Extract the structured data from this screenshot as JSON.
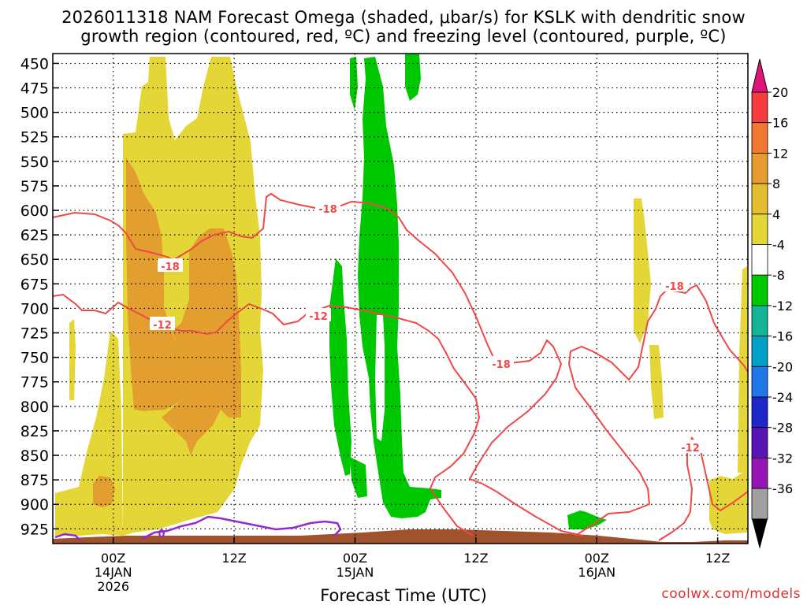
{
  "title": {
    "line1": "2026011318 NAM Forecast Omega (shaded, μbar/s) for KSLK with dendritic snow",
    "line2": "growth region (contoured, red, ºC) and freezing level (contoured, purple, ºC)"
  },
  "credit": "coolwx.com/models",
  "chart_data": {
    "type": "time-height cross section",
    "title": "2026011318 NAM Forecast Omega (shaded, μbar/s) for KSLK with dendritic snow growth region (contoured, red, ºC) and freezing level (contoured, purple, ºC)",
    "xlabel": "Forecast Time (UTC)",
    "ylabel": "Pressure (hPa)",
    "y_ticks": [
      450,
      475,
      500,
      525,
      550,
      575,
      600,
      625,
      650,
      675,
      700,
      725,
      750,
      775,
      800,
      825,
      850,
      875,
      900,
      925
    ],
    "ylim": [
      940,
      440
    ],
    "x_range_hours": [
      -6,
      63
    ],
    "x_ticks": [
      {
        "hour": 0,
        "label": "00Z",
        "sub1": "14JAN",
        "sub2": "2026"
      },
      {
        "hour": 12,
        "label": "12Z",
        "sub1": "",
        "sub2": ""
      },
      {
        "hour": 24,
        "label": "00Z",
        "sub1": "15JAN",
        "sub2": ""
      },
      {
        "hour": 36,
        "label": "12Z",
        "sub1": "",
        "sub2": ""
      },
      {
        "hour": 48,
        "label": "00Z",
        "sub1": "16JAN",
        "sub2": ""
      },
      {
        "hour": 60,
        "label": "12Z",
        "sub1": "",
        "sub2": ""
      },
      {
        "hour": 72,
        "label": "00Z",
        "sub1": "17JAN",
        "sub2": ""
      }
    ],
    "colorbar": {
      "labels": [
        "20",
        "16",
        "12",
        "8",
        "4",
        "-4",
        "-8",
        "-12",
        "-16",
        "-20",
        "-24",
        "-28",
        "-32",
        "-36"
      ],
      "colors": [
        "#f43c3c",
        "#f07830",
        "#e89a30",
        "#e4be30",
        "#e4d636",
        "#ffffff",
        "#00c800",
        "#14b496",
        "#00a0c8",
        "#1e78e6",
        "#1e28c8",
        "#5a14b4",
        "#9614b4",
        "#a0a0a0"
      ],
      "top_arrow_color": "#e01478",
      "bottom_arrow_color": "#000000"
    },
    "contour_labels": {
      "dgz": [
        "-18",
        "-18",
        "-12",
        "-12",
        "-18",
        "-18",
        "-12"
      ],
      "freezing": [
        "0"
      ]
    },
    "series": [
      {
        "name": "omega",
        "units": "μbar/s",
        "shading": "filled contours"
      },
      {
        "name": "dendritic snow growth region",
        "units": "ºC",
        "levels": [
          -18,
          -12
        ],
        "color": "#f04848"
      },
      {
        "name": "freezing level",
        "units": "ºC",
        "levels": [
          0
        ],
        "color": "#9628d2"
      }
    ]
  }
}
